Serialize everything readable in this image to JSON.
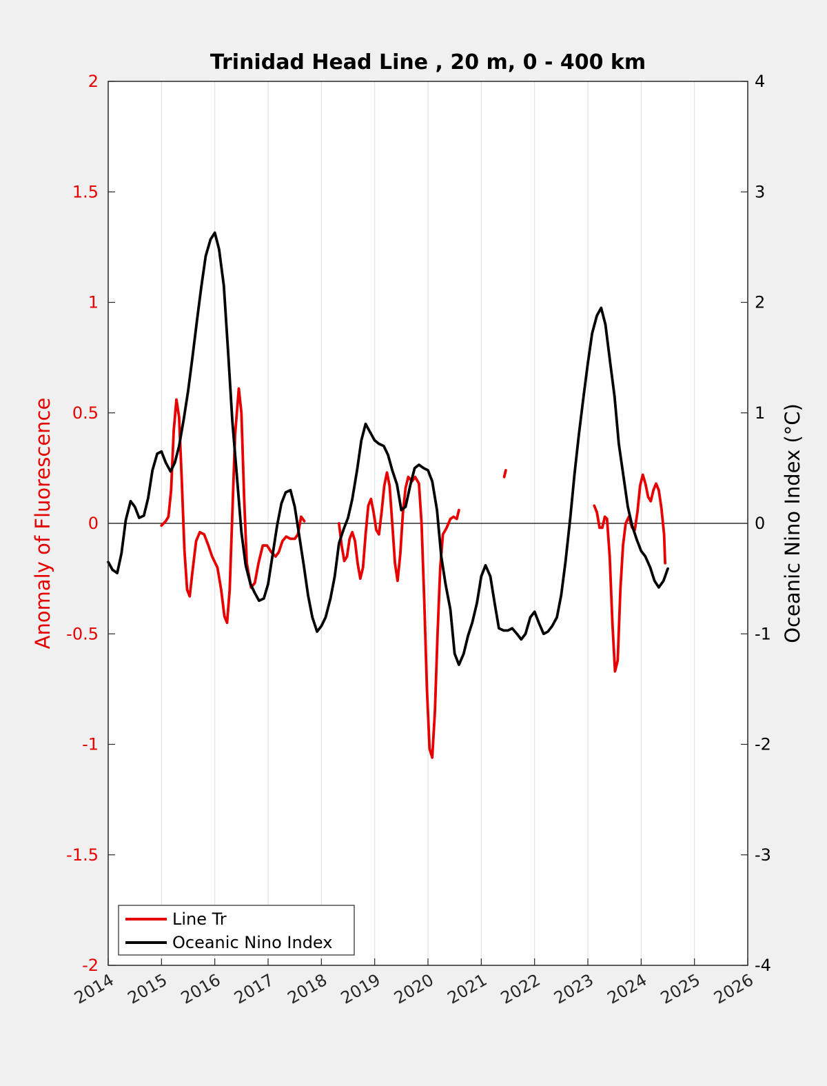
{
  "chart_data": {
    "type": "line",
    "title": "Trinidad Head Line , 20 m, 0 - 400 km",
    "xlabel": "",
    "ylabel_left": "Anomaly of Fluorescence",
    "ylabel_right": "Oceanic Nino Index (°C)",
    "xlim": [
      2014,
      2026
    ],
    "ylim_left": [
      -2,
      2
    ],
    "ylim_right": [
      -4,
      4
    ],
    "x_ticks": [
      "2014",
      "2015",
      "2016",
      "2017",
      "2018",
      "2019",
      "2020",
      "2021",
      "2022",
      "2023",
      "2024",
      "2025",
      "2026"
    ],
    "y_ticks_left": [
      "-2",
      "-1.5",
      "-1",
      "-0.5",
      "0",
      "0.5",
      "1",
      "1.5",
      "2"
    ],
    "y_ticks_right": [
      "-4",
      "-3",
      "-2",
      "-1",
      "0",
      "1",
      "2",
      "3",
      "4"
    ],
    "grid": "vertical",
    "legend_position": "bottom-left",
    "colors": {
      "line_tr": "#e60000",
      "oni": "#000000"
    },
    "series": [
      {
        "name": "Line Tr",
        "axis": "left",
        "segments": [
          [
            [
              2015.0,
              -0.01
            ],
            [
              2015.08,
              0.01
            ],
            [
              2015.13,
              0.03
            ],
            [
              2015.18,
              0.15
            ],
            [
              2015.23,
              0.42
            ],
            [
              2015.28,
              0.56
            ],
            [
              2015.33,
              0.48
            ],
            [
              2015.38,
              0.2
            ],
            [
              2015.43,
              -0.12
            ],
            [
              2015.48,
              -0.3
            ],
            [
              2015.53,
              -0.33
            ],
            [
              2015.58,
              -0.22
            ],
            [
              2015.65,
              -0.08
            ],
            [
              2015.72,
              -0.04
            ],
            [
              2015.8,
              -0.05
            ],
            [
              2015.88,
              -0.1
            ],
            [
              2015.95,
              -0.15
            ],
            [
              2016.05,
              -0.2
            ],
            [
              2016.12,
              -0.3
            ],
            [
              2016.18,
              -0.42
            ],
            [
              2016.23,
              -0.45
            ],
            [
              2016.28,
              -0.3
            ],
            [
              2016.33,
              0.05
            ],
            [
              2016.38,
              0.4
            ],
            [
              2016.45,
              0.61
            ],
            [
              2016.5,
              0.5
            ],
            [
              2016.55,
              0.12
            ],
            [
              2016.6,
              -0.18
            ],
            [
              2016.68,
              -0.29
            ],
            [
              2016.75,
              -0.27
            ],
            [
              2016.82,
              -0.18
            ],
            [
              2016.9,
              -0.1
            ],
            [
              2016.98,
              -0.1
            ],
            [
              2017.06,
              -0.13
            ],
            [
              2017.14,
              -0.15
            ],
            [
              2017.2,
              -0.13
            ],
            [
              2017.27,
              -0.08
            ],
            [
              2017.34,
              -0.06
            ],
            [
              2017.42,
              -0.07
            ],
            [
              2017.5,
              -0.07
            ],
            [
              2017.56,
              -0.05
            ],
            [
              2017.62,
              0.03
            ],
            [
              2017.68,
              0.01
            ]
          ],
          [
            [
              2018.33,
              0.0
            ],
            [
              2018.38,
              -0.1
            ],
            [
              2018.43,
              -0.17
            ],
            [
              2018.48,
              -0.15
            ],
            [
              2018.53,
              -0.07
            ],
            [
              2018.58,
              -0.04
            ],
            [
              2018.63,
              -0.08
            ],
            [
              2018.68,
              -0.18
            ],
            [
              2018.73,
              -0.25
            ],
            [
              2018.78,
              -0.2
            ],
            [
              2018.83,
              -0.05
            ],
            [
              2018.88,
              0.08
            ],
            [
              2018.93,
              0.11
            ],
            [
              2018.98,
              0.05
            ],
            [
              2019.03,
              -0.03
            ],
            [
              2019.08,
              -0.05
            ],
            [
              2019.13,
              0.05
            ],
            [
              2019.18,
              0.17
            ],
            [
              2019.23,
              0.23
            ],
            [
              2019.28,
              0.17
            ],
            [
              2019.33,
              0.0
            ],
            [
              2019.38,
              -0.18
            ],
            [
              2019.43,
              -0.26
            ],
            [
              2019.48,
              -0.14
            ],
            [
              2019.53,
              0.05
            ],
            [
              2019.58,
              0.16
            ],
            [
              2019.63,
              0.21
            ],
            [
              2019.7,
              0.19
            ],
            [
              2019.76,
              0.21
            ],
            [
              2019.83,
              0.18
            ],
            [
              2019.88,
              0.0
            ],
            [
              2019.93,
              -0.35
            ],
            [
              2019.98,
              -0.75
            ],
            [
              2020.03,
              -1.02
            ],
            [
              2020.08,
              -1.06
            ],
            [
              2020.13,
              -0.85
            ],
            [
              2020.18,
              -0.5
            ],
            [
              2020.23,
              -0.2
            ],
            [
              2020.28,
              -0.05
            ],
            [
              2020.35,
              -0.02
            ],
            [
              2020.42,
              0.02
            ],
            [
              2020.48,
              0.03
            ],
            [
              2020.54,
              0.02
            ],
            [
              2020.58,
              0.06
            ]
          ],
          [
            [
              2021.43,
              0.21
            ],
            [
              2021.46,
              0.24
            ]
          ],
          [
            [
              2023.12,
              0.08
            ],
            [
              2023.17,
              0.05
            ],
            [
              2023.22,
              -0.02
            ],
            [
              2023.27,
              -0.02
            ],
            [
              2023.32,
              0.03
            ],
            [
              2023.36,
              0.02
            ],
            [
              2023.41,
              -0.15
            ],
            [
              2023.46,
              -0.45
            ],
            [
              2023.51,
              -0.67
            ],
            [
              2023.56,
              -0.62
            ],
            [
              2023.61,
              -0.3
            ],
            [
              2023.66,
              -0.1
            ],
            [
              2023.71,
              0.0
            ],
            [
              2023.77,
              0.03
            ],
            [
              2023.83,
              -0.02
            ],
            [
              2023.88,
              -0.03
            ],
            [
              2023.93,
              0.05
            ],
            [
              2023.98,
              0.17
            ],
            [
              2024.03,
              0.22
            ],
            [
              2024.08,
              0.18
            ],
            [
              2024.13,
              0.12
            ],
            [
              2024.18,
              0.1
            ],
            [
              2024.23,
              0.15
            ],
            [
              2024.28,
              0.18
            ],
            [
              2024.33,
              0.15
            ],
            [
              2024.38,
              0.07
            ],
            [
              2024.43,
              -0.05
            ],
            [
              2024.45,
              -0.18
            ]
          ]
        ]
      },
      {
        "name": "Oceanic Nino Index",
        "axis": "right",
        "segments": [
          [
            [
              2014.0,
              -0.35
            ],
            [
              2014.08,
              -0.42
            ],
            [
              2014.17,
              -0.45
            ],
            [
              2014.25,
              -0.27
            ],
            [
              2014.33,
              0.03
            ],
            [
              2014.42,
              0.2
            ],
            [
              2014.5,
              0.15
            ],
            [
              2014.58,
              0.05
            ],
            [
              2014.67,
              0.07
            ],
            [
              2014.75,
              0.23
            ],
            [
              2014.83,
              0.48
            ],
            [
              2014.92,
              0.63
            ],
            [
              2015.0,
              0.65
            ],
            [
              2015.08,
              0.55
            ],
            [
              2015.17,
              0.47
            ],
            [
              2015.25,
              0.55
            ],
            [
              2015.33,
              0.7
            ],
            [
              2015.42,
              0.95
            ],
            [
              2015.5,
              1.2
            ],
            [
              2015.58,
              1.5
            ],
            [
              2015.67,
              1.85
            ],
            [
              2015.75,
              2.15
            ],
            [
              2015.83,
              2.42
            ],
            [
              2015.92,
              2.57
            ],
            [
              2016.0,
              2.63
            ],
            [
              2016.08,
              2.48
            ],
            [
              2016.17,
              2.15
            ],
            [
              2016.25,
              1.55
            ],
            [
              2016.33,
              0.92
            ],
            [
              2016.42,
              0.4
            ],
            [
              2016.5,
              -0.08
            ],
            [
              2016.58,
              -0.38
            ],
            [
              2016.67,
              -0.55
            ],
            [
              2016.75,
              -0.63
            ],
            [
              2016.83,
              -0.7
            ],
            [
              2016.92,
              -0.68
            ],
            [
              2017.0,
              -0.55
            ],
            [
              2017.08,
              -0.3
            ],
            [
              2017.17,
              -0.02
            ],
            [
              2017.25,
              0.18
            ],
            [
              2017.33,
              0.28
            ],
            [
              2017.42,
              0.3
            ],
            [
              2017.5,
              0.15
            ],
            [
              2017.58,
              -0.1
            ],
            [
              2017.67,
              -0.38
            ],
            [
              2017.75,
              -0.65
            ],
            [
              2017.83,
              -0.85
            ],
            [
              2017.92,
              -0.98
            ],
            [
              2018.0,
              -0.93
            ],
            [
              2018.08,
              -0.85
            ],
            [
              2018.17,
              -0.68
            ],
            [
              2018.25,
              -0.48
            ],
            [
              2018.33,
              -0.18
            ],
            [
              2018.42,
              -0.05
            ],
            [
              2018.5,
              0.05
            ],
            [
              2018.58,
              0.22
            ],
            [
              2018.67,
              0.48
            ],
            [
              2018.75,
              0.75
            ],
            [
              2018.83,
              0.9
            ],
            [
              2018.92,
              0.82
            ],
            [
              2019.0,
              0.75
            ],
            [
              2019.08,
              0.72
            ],
            [
              2019.17,
              0.7
            ],
            [
              2019.25,
              0.62
            ],
            [
              2019.33,
              0.48
            ],
            [
              2019.42,
              0.35
            ],
            [
              2019.5,
              0.12
            ],
            [
              2019.58,
              0.15
            ],
            [
              2019.67,
              0.35
            ],
            [
              2019.75,
              0.5
            ],
            [
              2019.83,
              0.53
            ],
            [
              2019.92,
              0.5
            ],
            [
              2020.0,
              0.48
            ],
            [
              2020.08,
              0.38
            ],
            [
              2020.17,
              0.12
            ],
            [
              2020.25,
              -0.3
            ],
            [
              2020.33,
              -0.55
            ],
            [
              2020.42,
              -0.78
            ],
            [
              2020.5,
              -1.18
            ],
            [
              2020.58,
              -1.28
            ],
            [
              2020.67,
              -1.18
            ],
            [
              2020.75,
              -1.02
            ],
            [
              2020.83,
              -0.9
            ],
            [
              2020.92,
              -0.72
            ],
            [
              2021.0,
              -0.48
            ],
            [
              2021.08,
              -0.38
            ],
            [
              2021.17,
              -0.48
            ],
            [
              2021.25,
              -0.72
            ],
            [
              2021.33,
              -0.95
            ],
            [
              2021.42,
              -0.97
            ],
            [
              2021.5,
              -0.97
            ],
            [
              2021.58,
              -0.95
            ],
            [
              2021.67,
              -1.0
            ],
            [
              2021.75,
              -1.05
            ],
            [
              2021.83,
              -1.0
            ],
            [
              2021.92,
              -0.85
            ],
            [
              2022.0,
              -0.8
            ],
            [
              2022.08,
              -0.9
            ],
            [
              2022.17,
              -1.0
            ],
            [
              2022.25,
              -0.98
            ],
            [
              2022.33,
              -0.93
            ],
            [
              2022.42,
              -0.85
            ],
            [
              2022.5,
              -0.65
            ],
            [
              2022.58,
              -0.35
            ],
            [
              2022.67,
              0.05
            ],
            [
              2022.75,
              0.45
            ],
            [
              2022.83,
              0.8
            ],
            [
              2022.92,
              1.15
            ],
            [
              2023.0,
              1.45
            ],
            [
              2023.08,
              1.72
            ],
            [
              2023.17,
              1.88
            ],
            [
              2023.25,
              1.95
            ],
            [
              2023.33,
              1.8
            ],
            [
              2023.42,
              1.45
            ],
            [
              2023.5,
              1.15
            ],
            [
              2023.58,
              0.72
            ],
            [
              2023.67,
              0.42
            ],
            [
              2023.75,
              0.15
            ],
            [
              2023.83,
              -0.02
            ],
            [
              2023.92,
              -0.15
            ],
            [
              2024.0,
              -0.25
            ],
            [
              2024.08,
              -0.3
            ],
            [
              2024.17,
              -0.4
            ],
            [
              2024.25,
              -0.52
            ],
            [
              2024.33,
              -0.58
            ],
            [
              2024.42,
              -0.52
            ],
            [
              2024.5,
              -0.41
            ]
          ]
        ]
      }
    ]
  },
  "legend": {
    "items": [
      {
        "label": "Line Tr",
        "color": "#e60000"
      },
      {
        "label": "Oceanic Nino Index",
        "color": "#000000"
      }
    ]
  }
}
